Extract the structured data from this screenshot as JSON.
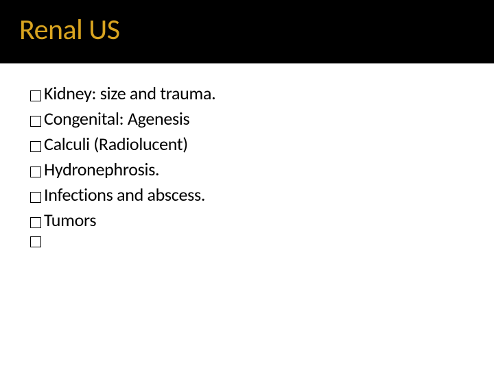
{
  "slide": {
    "title": "Renal US",
    "title_color": "#d9a420",
    "title_bg": "#000000",
    "title_fontsize": 42,
    "bullet_items": [
      "Kidney: size and trauma.",
      "Congenital: Agenesis",
      "Calculi (Radiolucent)",
      "Hydronephrosis.",
      "Infections and abscess.",
      "Tumors",
      ""
    ],
    "bullet_text_color": "#000000",
    "bullet_fontsize": 26,
    "bullet_marker": "hollow-square",
    "background_color": "#ffffff",
    "divider_color": "#888888"
  }
}
